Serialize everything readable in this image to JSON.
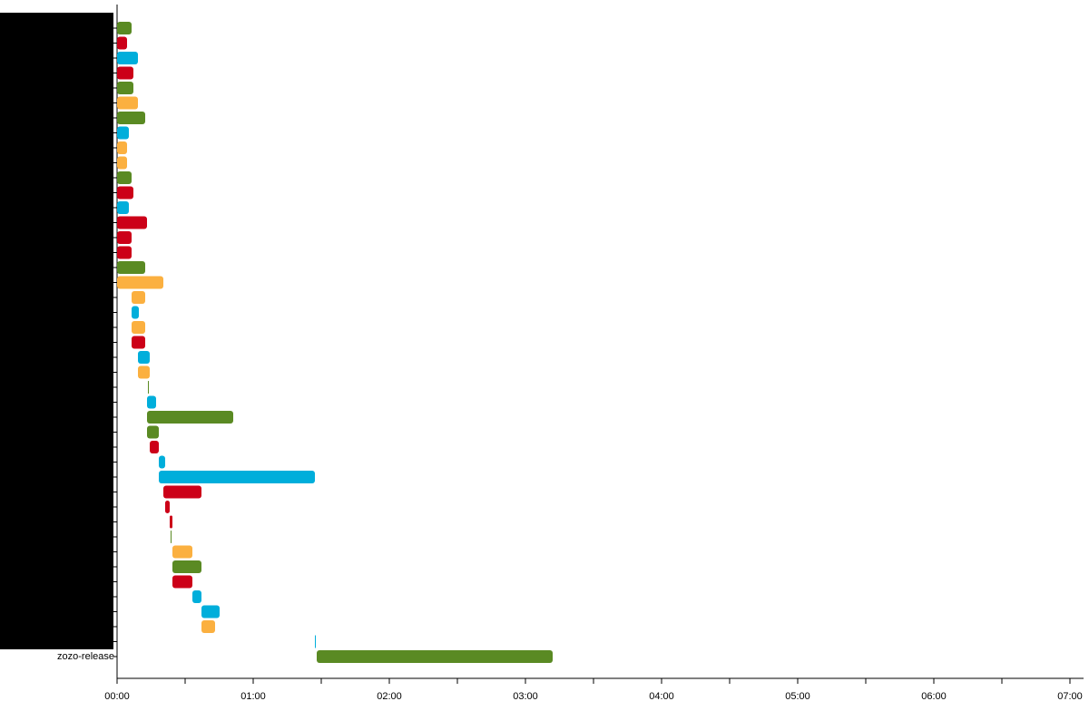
{
  "chart_data": {
    "type": "gantt",
    "categories": [
      null,
      null,
      null,
      null,
      null,
      null,
      null,
      null,
      null,
      null,
      null,
      null,
      null,
      null,
      null,
      null,
      null,
      null,
      null,
      null,
      null,
      null,
      null,
      null,
      null,
      null,
      null,
      null,
      null,
      null,
      null,
      null,
      null,
      null,
      null,
      null,
      null,
      null,
      null,
      null,
      null,
      null,
      "zozo-release"
    ],
    "start": [
      0,
      0,
      0,
      0,
      0,
      0,
      0,
      0,
      0,
      0,
      0,
      0,
      0,
      0,
      0,
      0,
      0,
      0,
      6.4,
      6.4,
      6.4,
      6.4,
      9.2,
      9.2,
      13.6,
      13.2,
      13.2,
      13.2,
      14.4,
      18.4,
      18.4,
      20.4,
      21.2,
      23.2,
      23.6,
      24.4,
      24.4,
      24.4,
      33.2,
      37.2,
      37.2,
      87.2,
      88
    ],
    "end": [
      6.4,
      4.4,
      9.2,
      7.2,
      7.2,
      9.2,
      12.4,
      5.2,
      4.4,
      4.4,
      6.4,
      7.2,
      5.2,
      13.2,
      6.4,
      6.4,
      12.4,
      20.4,
      12.4,
      9.6,
      12.4,
      12.4,
      14.4,
      14.4,
      13.8,
      17.2,
      51.2,
      18.4,
      18.4,
      21.2,
      87.2,
      37.2,
      23.2,
      24.4,
      24,
      33.2,
      37.2,
      33.2,
      37.2,
      45.2,
      43.2,
      87.4,
      192
    ],
    "colors": [
      "#5a8a23",
      "#cc0018",
      "#00aedb",
      "#cc0018",
      "#5a8a23",
      "#fbb040",
      "#5a8a23",
      "#00aedb",
      "#fbb040",
      "#fbb040",
      "#5a8a23",
      "#cc0018",
      "#00aedb",
      "#cc0018",
      "#cc0018",
      "#cc0018",
      "#5a8a23",
      "#fbb040",
      "#fbb040",
      "#00aedb",
      "#fbb040",
      "#cc0018",
      "#00aedb",
      "#fbb040",
      "#5a8a23",
      "#00aedb",
      "#5a8a23",
      "#5a8a23",
      "#cc0018",
      "#00aedb",
      "#00aedb",
      "#cc0018",
      "#cc0018",
      "#cc0018",
      "#5a8a23",
      "#fbb040",
      "#5a8a23",
      "#cc0018",
      "#00aedb",
      "#00aedb",
      "#fbb040",
      "#00aedb",
      "#5a8a23"
    ],
    "xlim": [
      0,
      426
    ],
    "xticks": [
      {
        "value": 0,
        "label": "00:00"
      },
      {
        "value": 60,
        "label": "01:00"
      },
      {
        "value": 120,
        "label": "02:00"
      },
      {
        "value": 180,
        "label": "03:00"
      },
      {
        "value": 240,
        "label": "04:00"
      },
      {
        "value": 300,
        "label": "05:00"
      },
      {
        "value": 360,
        "label": "06:00"
      },
      {
        "value": 420,
        "label": "07:00"
      }
    ],
    "xminor_ticks": [
      30,
      90,
      150,
      210,
      270,
      330,
      390
    ]
  }
}
